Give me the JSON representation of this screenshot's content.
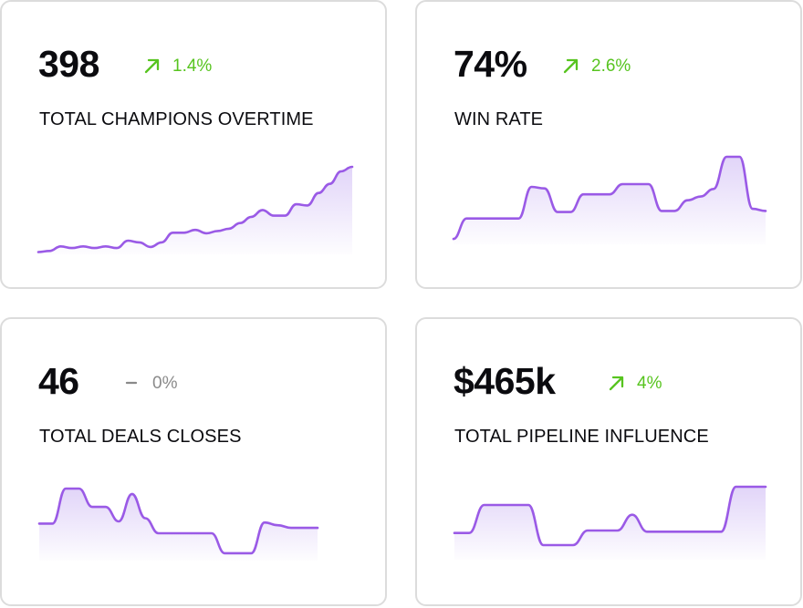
{
  "colors": {
    "line": "#9a5ae6",
    "fill_top": "#c9b2f3",
    "up": "#57c41f",
    "flat": "#8a8a8a"
  },
  "cards": [
    {
      "value": "398",
      "delta": "1.4%",
      "trend": "up",
      "trend_icon": "arrow-up-right-icon",
      "label": "TOTAL CHAMPIONS OVERTIME",
      "sparkline": [
        4,
        6,
        14,
        11,
        14,
        11,
        14,
        11,
        24,
        21,
        13,
        21,
        38,
        38,
        43,
        37,
        41,
        45,
        55,
        66,
        78,
        68,
        68,
        88,
        86,
        108,
        124,
        146,
        154
      ]
    },
    {
      "value": "74%",
      "delta": "2.6%",
      "trend": "up",
      "trend_icon": "arrow-up-right-icon",
      "label": "WIN RATE",
      "sparkline": [
        5,
        43,
        43,
        43,
        43,
        43,
        102,
        99,
        55,
        55,
        88,
        88,
        88,
        107,
        107,
        107,
        57,
        57,
        77,
        84,
        98,
        158,
        158,
        61,
        57
      ]
    },
    {
      "value": "46",
      "delta": "0%",
      "trend": "flat",
      "trend_icon": "dash-icon",
      "label": "TOTAL DEALS CLOSES",
      "sparkline": [
        62,
        62,
        127,
        127,
        93,
        93,
        66,
        117,
        72,
        44,
        44,
        44,
        44,
        44,
        7,
        7,
        7,
        64,
        59,
        54,
        54,
        54
      ]
    },
    {
      "value": "$465k",
      "delta": "4%",
      "trend": "up",
      "trend_icon": "arrow-up-right-icon",
      "label": "TOTAL PIPELINE INFLUENCE",
      "sparkline": [
        10,
        10,
        33,
        33,
        33,
        33,
        0,
        0,
        0,
        12,
        12,
        12,
        25,
        11,
        11,
        11,
        11,
        11,
        11,
        48,
        48,
        48
      ]
    }
  ]
}
